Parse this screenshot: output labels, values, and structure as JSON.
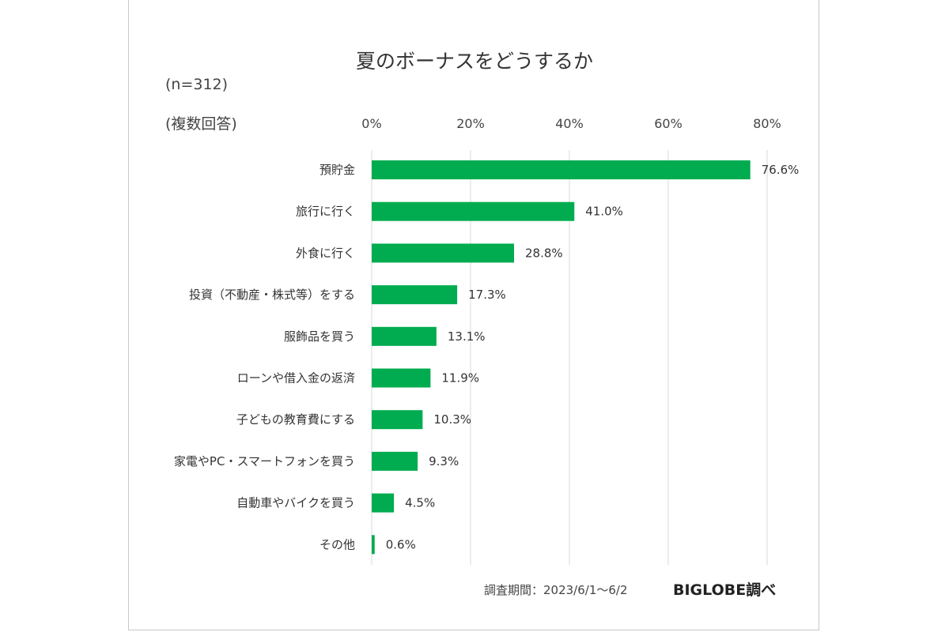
{
  "chart_data": {
    "type": "bar",
    "orientation": "horizontal",
    "title": "夏のボーナスをどうするか",
    "sample_size": "(n=312)",
    "note": "(複数回答)",
    "categories": [
      "預貯金",
      "旅行に行く",
      "外食に行く",
      "投資（不動産・株式等）をする",
      "服飾品を買う",
      "ローンや借入金の返済",
      "子どもの教育費にする",
      "家電やPC・スマートフォンを買う",
      "自動車やバイクを買う",
      "その他"
    ],
    "values": [
      76.6,
      41.0,
      28.8,
      17.3,
      13.1,
      11.9,
      10.3,
      9.3,
      4.5,
      0.6
    ],
    "value_labels": [
      "76.6%",
      "41.0%",
      "28.8%",
      "17.3%",
      "13.1%",
      "11.9%",
      "10.3%",
      "9.3%",
      "4.5%",
      "0.6%"
    ],
    "x_ticks": [
      0,
      20,
      40,
      60,
      80
    ],
    "x_tick_labels": [
      "0%",
      "20%",
      "40%",
      "60%",
      "80%"
    ],
    "xlim": [
      0,
      80
    ],
    "grid": true,
    "axis_position": "top",
    "bar_color": "#00ac4f",
    "grid_color": "#d9d9d9"
  },
  "footer": {
    "period": "調査期間：2023/6/1～6/2",
    "brand": "BIGLOBE調べ"
  }
}
